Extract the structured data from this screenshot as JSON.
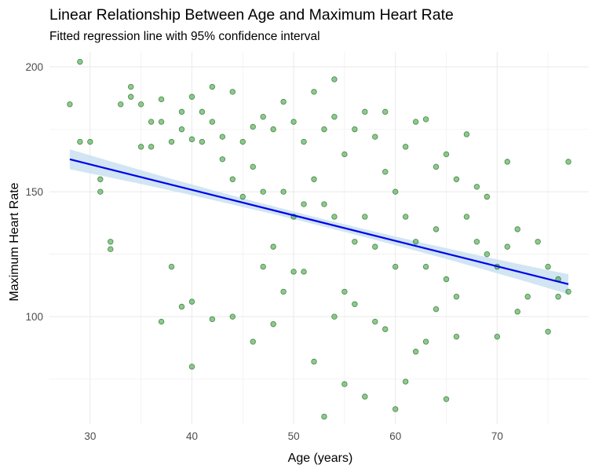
{
  "chart_data": {
    "type": "scatter",
    "title": "Linear Relationship Between Age and Maximum Heart Rate",
    "subtitle": "Fitted regression line with 95% confidence interval",
    "xlabel": "Age (years)",
    "ylabel": "Maximum Heart Rate",
    "xlim": [
      26,
      79
    ],
    "ylim": [
      57,
      206
    ],
    "x_ticks": [
      30,
      40,
      50,
      60,
      70
    ],
    "y_ticks": [
      100,
      150,
      200
    ],
    "grid": true,
    "legend": "none",
    "colors": {
      "points_fill": "#2e9e2e",
      "points_stroke": "#1a5e1a",
      "regression_line": "#0000ee",
      "confidence_band": "#c6dff0",
      "grid": "#ebebeb",
      "axis_text": "#4d4d4d"
    },
    "regression": {
      "x_start": 28,
      "x_end": 77,
      "y_start": 163,
      "y_end": 113,
      "ci_halfwidth_ends": 4,
      "ci_halfwidth_mid": 1.5,
      "ci_label": "95% confidence interval"
    },
    "points": [
      [
        28,
        185
      ],
      [
        29,
        202
      ],
      [
        29,
        170
      ],
      [
        30,
        170
      ],
      [
        31,
        150
      ],
      [
        31,
        155
      ],
      [
        32,
        127
      ],
      [
        32,
        130
      ],
      [
        33,
        185
      ],
      [
        34,
        192
      ],
      [
        34,
        188
      ],
      [
        35,
        185
      ],
      [
        35,
        168
      ],
      [
        36,
        178
      ],
      [
        36,
        168
      ],
      [
        37,
        187
      ],
      [
        37,
        178
      ],
      [
        37,
        98
      ],
      [
        38,
        170
      ],
      [
        38,
        120
      ],
      [
        39,
        182
      ],
      [
        39,
        175
      ],
      [
        39,
        104
      ],
      [
        40,
        188
      ],
      [
        40,
        171
      ],
      [
        40,
        80
      ],
      [
        40,
        106
      ],
      [
        41,
        182
      ],
      [
        41,
        170
      ],
      [
        42,
        192
      ],
      [
        42,
        178
      ],
      [
        42,
        99
      ],
      [
        43,
        172
      ],
      [
        43,
        163
      ],
      [
        44,
        190
      ],
      [
        44,
        155
      ],
      [
        44,
        100
      ],
      [
        45,
        170
      ],
      [
        45,
        148
      ],
      [
        46,
        176
      ],
      [
        46,
        160
      ],
      [
        46,
        90
      ],
      [
        47,
        180
      ],
      [
        47,
        150
      ],
      [
        47,
        120
      ],
      [
        48,
        175
      ],
      [
        48,
        128
      ],
      [
        48,
        97
      ],
      [
        49,
        186
      ],
      [
        49,
        150
      ],
      [
        49,
        110
      ],
      [
        50,
        178
      ],
      [
        50,
        140
      ],
      [
        50,
        118
      ],
      [
        51,
        170
      ],
      [
        51,
        145
      ],
      [
        51,
        118
      ],
      [
        52,
        190
      ],
      [
        52,
        155
      ],
      [
        52,
        82
      ],
      [
        53,
        175
      ],
      [
        53,
        145
      ],
      [
        53,
        60
      ],
      [
        54,
        195
      ],
      [
        54,
        180
      ],
      [
        54,
        140
      ],
      [
        54,
        100
      ],
      [
        55,
        165
      ],
      [
        55,
        110
      ],
      [
        55,
        73
      ],
      [
        56,
        175
      ],
      [
        56,
        130
      ],
      [
        56,
        105
      ],
      [
        57,
        182
      ],
      [
        57,
        140
      ],
      [
        57,
        68
      ],
      [
        58,
        172
      ],
      [
        58,
        128
      ],
      [
        58,
        98
      ],
      [
        59,
        182
      ],
      [
        59,
        158
      ],
      [
        59,
        95
      ],
      [
        60,
        150
      ],
      [
        60,
        120
      ],
      [
        60,
        63
      ],
      [
        61,
        168
      ],
      [
        61,
        140
      ],
      [
        61,
        74
      ],
      [
        62,
        178
      ],
      [
        62,
        130
      ],
      [
        62,
        86
      ],
      [
        63,
        179
      ],
      [
        63,
        120
      ],
      [
        63,
        90
      ],
      [
        64,
        160
      ],
      [
        64,
        135
      ],
      [
        64,
        103
      ],
      [
        65,
        165
      ],
      [
        65,
        115
      ],
      [
        65,
        67
      ],
      [
        66,
        155
      ],
      [
        66,
        108
      ],
      [
        66,
        92
      ],
      [
        67,
        173
      ],
      [
        67,
        140
      ],
      [
        68,
        152
      ],
      [
        68,
        130
      ],
      [
        69,
        148
      ],
      [
        69,
        125
      ],
      [
        70,
        120
      ],
      [
        70,
        92
      ],
      [
        71,
        162
      ],
      [
        71,
        128
      ],
      [
        72,
        135
      ],
      [
        72,
        102
      ],
      [
        73,
        108
      ],
      [
        74,
        130
      ],
      [
        75,
        94
      ],
      [
        75,
        120
      ],
      [
        76,
        115
      ],
      [
        76,
        108
      ],
      [
        77,
        162
      ],
      [
        77,
        110
      ]
    ]
  }
}
